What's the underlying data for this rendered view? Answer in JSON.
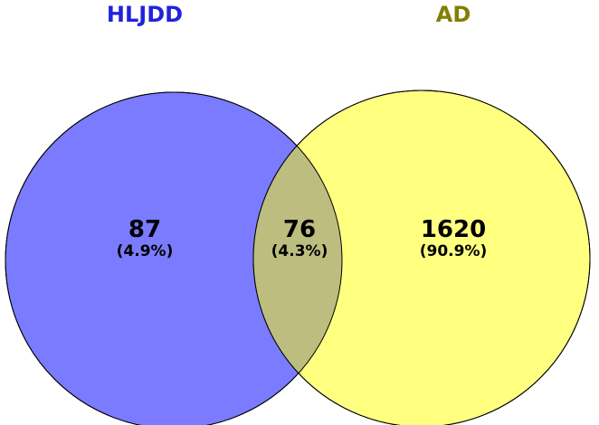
{
  "sets": [
    {
      "name": "HLJDD",
      "label_color": "#2222dd",
      "fill_color": "#7b7bff"
    },
    {
      "name": "AD",
      "label_color": "#808000",
      "fill_color": "#ffff80"
    }
  ],
  "regions": {
    "left_only": {
      "count": "87",
      "percent": "(4.9%)"
    },
    "overlap": {
      "count": "76",
      "percent": "(4.3%)",
      "fill_color": "#bdbd80"
    },
    "right_only": {
      "count": "1620",
      "percent": "(90.9%)"
    }
  },
  "stroke_color": "#000000"
}
